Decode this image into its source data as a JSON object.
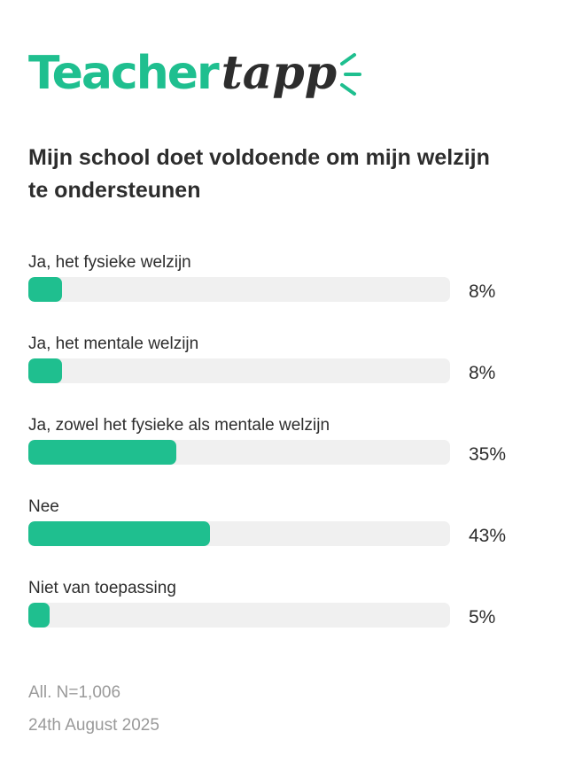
{
  "logo": {
    "teacher": "Teacher",
    "tapp": "tapp"
  },
  "chart_data": {
    "type": "bar",
    "title": "Mijn school doet voldoende om mijn welzijn te ondersteunen",
    "categories": [
      "Ja, het fysieke welzijn",
      "Ja, het mentale welzijn",
      "Ja, zowel het fysieke als mentale welzijn",
      "Nee",
      "Niet van toepassing"
    ],
    "values": [
      8,
      8,
      35,
      43,
      5
    ],
    "labels": [
      "8%",
      "8%",
      "35%",
      "43%",
      "5%"
    ],
    "ylim": [
      0,
      100
    ],
    "bar_color": "#1fbf8f",
    "track_color": "#f0f0f0"
  },
  "footer": {
    "sample": "All. N=1,006",
    "date": "24th August 2025"
  }
}
